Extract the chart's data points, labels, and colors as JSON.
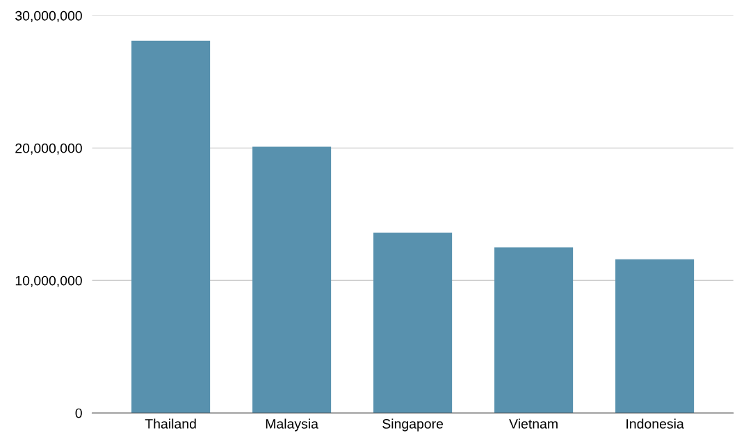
{
  "chart_data": {
    "type": "bar",
    "categories": [
      "Thailand",
      "Malaysia",
      "Singapore",
      "Vietnam",
      "Indonesia"
    ],
    "values": [
      28100000,
      20100000,
      13600000,
      12500000,
      11600000
    ],
    "color": "#5891ae",
    "ylim": [
      0,
      30000000
    ],
    "yticks": [
      {
        "value": 0,
        "label": "0"
      },
      {
        "value": 10000000,
        "label": "10,000,000"
      },
      {
        "value": 20000000,
        "label": "20,000,000"
      },
      {
        "value": 30000000,
        "label": "30,000,000"
      }
    ],
    "grid": "y"
  }
}
